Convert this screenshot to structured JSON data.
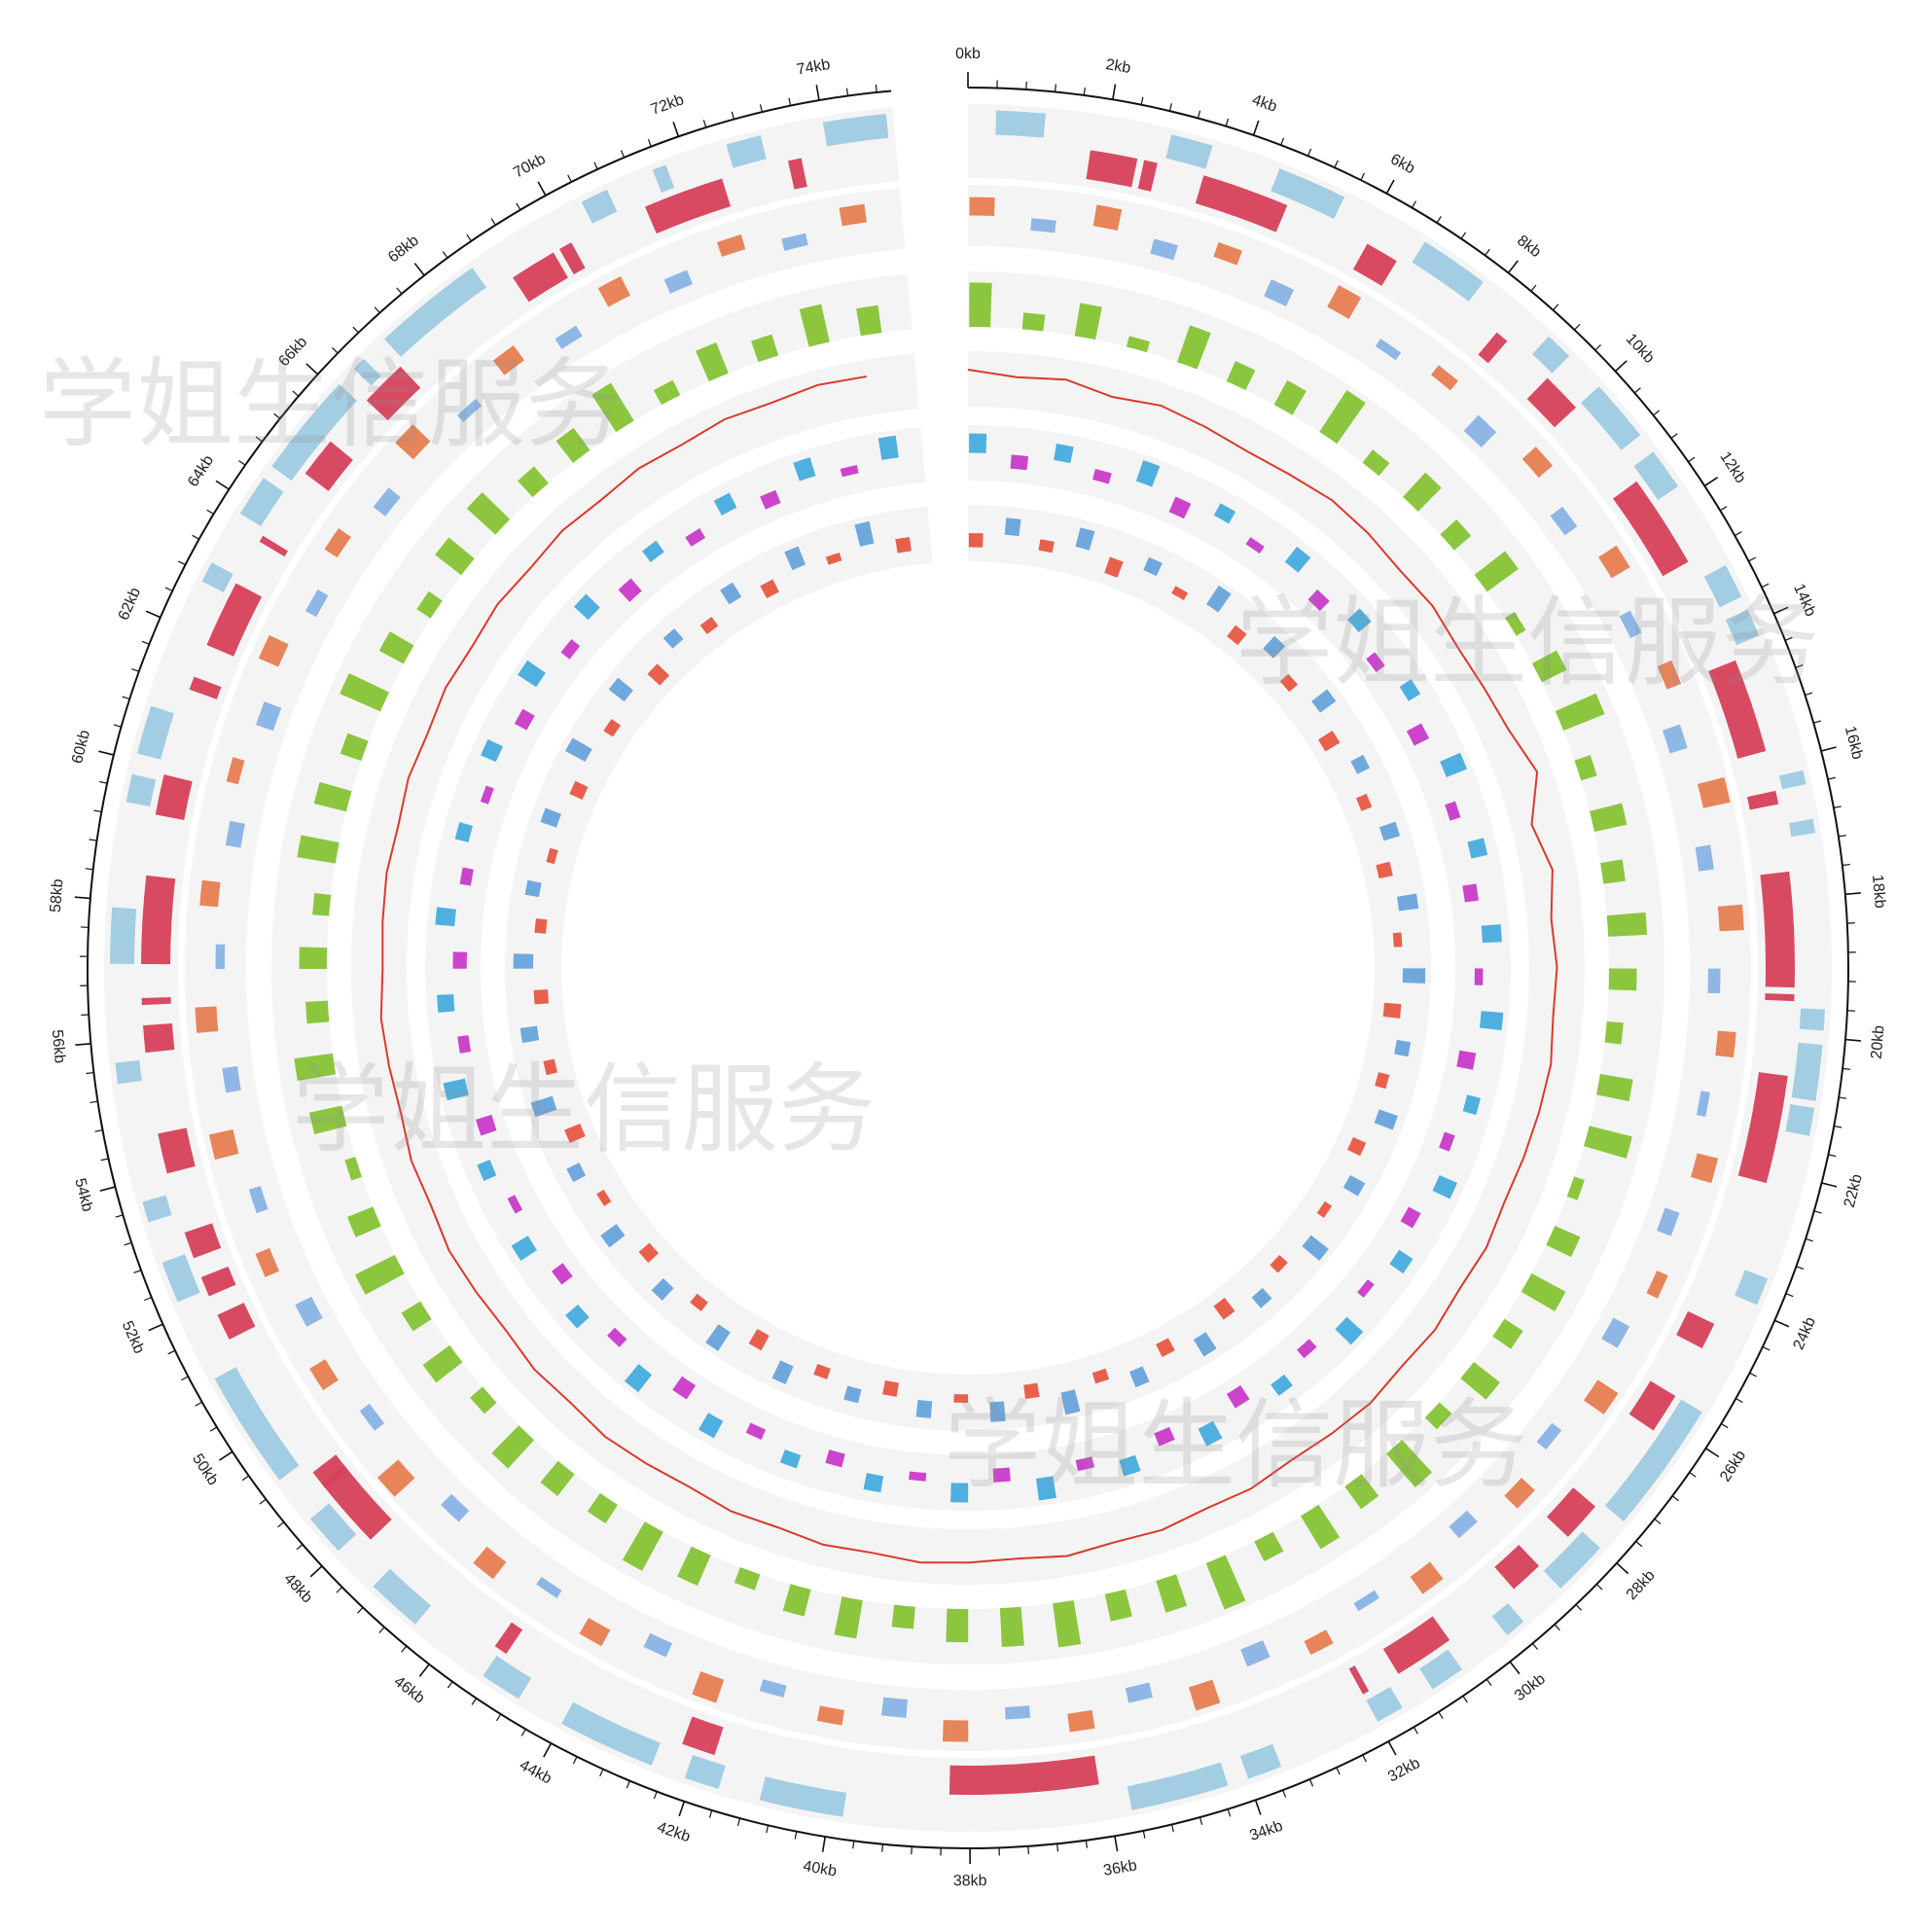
{
  "chart_data": {
    "type": "circos",
    "xlim": [
      0,
      75
    ],
    "xticks": [
      {
        "value": 0,
        "label": "0kb"
      },
      {
        "value": 2,
        "label": "2kb"
      },
      {
        "value": 4,
        "label": "4kb"
      },
      {
        "value": 6,
        "label": "6kb"
      },
      {
        "value": 8,
        "label": "8kb"
      },
      {
        "value": 10,
        "label": "10kb"
      },
      {
        "value": 12,
        "label": "12kb"
      },
      {
        "value": 14,
        "label": "14kb"
      },
      {
        "value": 16,
        "label": "16kb"
      },
      {
        "value": 18,
        "label": "18kb"
      },
      {
        "value": 20,
        "label": "20kb"
      },
      {
        "value": 22,
        "label": "22kb"
      },
      {
        "value": 24,
        "label": "24kb"
      },
      {
        "value": 26,
        "label": "26kb"
      },
      {
        "value": 28,
        "label": "28kb"
      },
      {
        "value": 30,
        "label": "30kb"
      },
      {
        "value": 32,
        "label": "32kb"
      },
      {
        "value": 34,
        "label": "34kb"
      },
      {
        "value": 36,
        "label": "36kb"
      },
      {
        "value": 38,
        "label": "38kb"
      },
      {
        "value": 40,
        "label": "40kb"
      },
      {
        "value": 42,
        "label": "42kb"
      },
      {
        "value": 44,
        "label": "44kb"
      },
      {
        "value": 46,
        "label": "46kb"
      },
      {
        "value": 48,
        "label": "48kb"
      },
      {
        "value": 50,
        "label": "50kb"
      },
      {
        "value": 52,
        "label": "52kb"
      },
      {
        "value": 54,
        "label": "54kb"
      },
      {
        "value": 56,
        "label": "56kb"
      },
      {
        "value": 58,
        "label": "58kb"
      },
      {
        "value": 60,
        "label": "60kb"
      },
      {
        "value": 62,
        "label": "62kb"
      },
      {
        "value": 64,
        "label": "64kb"
      },
      {
        "value": 66,
        "label": "66kb"
      },
      {
        "value": 68,
        "label": "68kb"
      },
      {
        "value": 70,
        "label": "70kb"
      },
      {
        "value": 72,
        "label": "72kb"
      },
      {
        "value": 74,
        "label": "74kb"
      }
    ],
    "xminor_step": 0.4,
    "watermark": "学姐生信服务",
    "x": [
      0,
      1,
      2,
      3,
      4,
      5,
      6,
      7,
      8,
      9,
      10,
      11,
      12,
      13,
      14,
      15,
      16,
      17,
      18,
      19,
      20,
      21,
      22,
      23,
      24,
      25,
      26,
      27,
      28,
      29,
      30,
      31,
      32,
      33,
      34,
      35,
      36,
      37,
      38,
      39,
      40,
      41,
      42,
      43,
      44,
      45,
      46,
      47,
      48,
      49,
      50,
      51,
      52,
      53,
      54,
      55,
      56,
      57,
      58,
      59,
      60,
      61,
      62,
      63,
      64,
      65,
      66,
      67,
      68,
      69,
      70,
      71,
      72,
      73,
      74
    ],
    "tracks": [
      {
        "type": "gene",
        "lane": "outer",
        "color": "#9ecae1",
        "spans": [
          [
            0.4,
            1.1
          ],
          [
            2.9,
            3.5
          ],
          [
            4.5,
            5.5
          ],
          [
            6.8,
            7.8
          ],
          [
            9.0,
            9.4
          ],
          [
            10.0,
            10.9
          ],
          [
            11.2,
            11.8
          ],
          [
            13.1,
            13.6
          ],
          [
            13.8,
            14.2
          ],
          [
            16.2,
            16.4
          ],
          [
            16.9,
            17.1
          ],
          [
            19.6,
            19.9
          ],
          [
            20.1,
            20.9
          ],
          [
            21.0,
            21.4
          ],
          [
            23.5,
            23.9
          ],
          [
            25.6,
            26.6
          ],
          [
            26.6,
            27.5
          ],
          [
            28.0,
            28.8
          ],
          [
            29.5,
            29.8
          ],
          [
            30.6,
            31.1
          ],
          [
            31.6,
            32.0
          ],
          [
            33.5,
            34.0
          ],
          [
            34.3,
            35.7
          ],
          [
            39.8,
            41.0
          ],
          [
            41.6,
            42.1
          ],
          [
            42.6,
            44.0
          ],
          [
            44.7,
            45.3
          ],
          [
            46.5,
            47.3
          ],
          [
            48.0,
            48.6
          ],
          [
            49.3,
            51.0
          ],
          [
            52.2,
            52.8
          ],
          [
            53.4,
            53.7
          ],
          [
            55.4,
            55.7
          ],
          [
            57.1,
            57.3
          ],
          [
            57.3,
            57.9
          ],
          [
            59.4,
            59.8
          ],
          [
            60.1,
            60.8
          ],
          [
            62.7,
            63.0
          ],
          [
            63.8,
            64.4
          ],
          [
            64.6,
            66.1
          ],
          [
            66.4,
            66.6
          ],
          [
            67.0,
            68.6
          ],
          [
            70.4,
            70.8
          ],
          [
            71.5,
            71.7
          ],
          [
            72.6,
            73.1
          ],
          [
            74.0,
            74.9
          ]
        ]
      },
      {
        "type": "gene",
        "lane": "inner",
        "color": "#d6405a",
        "spans": [
          [
            1.8,
            2.5
          ],
          [
            2.6,
            2.8
          ],
          [
            3.5,
            4.8
          ],
          [
            6.1,
            6.6
          ],
          [
            8.4,
            8.6
          ],
          [
            9.4,
            10.0
          ],
          [
            11.4,
            12.8
          ],
          [
            14.4,
            15.8
          ],
          [
            16.4,
            16.6
          ],
          [
            17.6,
            19.3
          ],
          [
            19.4,
            19.5
          ],
          [
            20.6,
            22.2
          ],
          [
            24.4,
            24.8
          ],
          [
            25.6,
            26.2
          ],
          [
            27.6,
            28.2
          ],
          [
            28.8,
            29.3
          ],
          [
            30.5,
            31.4
          ],
          [
            31.9,
            32.0
          ],
          [
            36.1,
            38.3
          ],
          [
            41.8,
            42.3
          ],
          [
            45.2,
            45.4
          ],
          [
            47.8,
            48.9
          ],
          [
            48.8,
            49.1
          ],
          [
            51.4,
            51.8
          ],
          [
            52.1,
            52.4
          ],
          [
            52.7,
            53.1
          ],
          [
            54.0,
            54.6
          ],
          [
            55.8,
            56.2
          ],
          [
            56.5,
            56.6
          ],
          [
            57.1,
            58.4
          ],
          [
            59.3,
            59.9
          ],
          [
            61.2,
            61.4
          ],
          [
            61.9,
            62.9
          ],
          [
            63.6,
            63.7
          ],
          [
            64.8,
            65.4
          ],
          [
            66.2,
            66.9
          ],
          [
            69.0,
            69.7
          ],
          [
            69.8,
            70.0
          ],
          [
            71.2,
            72.4
          ],
          [
            73.4,
            73.6
          ]
        ]
      },
      {
        "type": "bar",
        "ylim": [
          -1,
          1
        ],
        "pos_color": "#e8845a",
        "neg_color": "#8fb7e6",
        "values": [
          0.6,
          -0.4,
          0.7,
          -0.5,
          0.5,
          -0.6,
          0.8,
          -0.3,
          0.4,
          -0.7,
          0.6,
          -0.5,
          0.7,
          -0.4,
          0.5,
          -0.6,
          0.9,
          -0.5,
          0.8,
          -0.4,
          0.6,
          -0.3,
          0.7,
          -0.5,
          0.4,
          -0.6,
          0.8,
          -0.4,
          0.6,
          -0.5,
          0.7,
          -0.3,
          0.5,
          -0.6,
          0.8,
          -0.5,
          0.6,
          -0.4,
          0.7,
          -0.6,
          0.5,
          -0.4,
          0.8,
          -0.5,
          0.6,
          -0.3,
          0.7,
          -0.5,
          0.9,
          -0.4,
          0.6,
          -0.6,
          0.5,
          -0.4,
          0.8,
          -0.5,
          0.7,
          -0.3,
          0.6,
          -0.5,
          0.4,
          -0.6,
          0.7,
          -0.4,
          0.5,
          -0.5,
          0.8,
          -0.3,
          0.6,
          -0.4,
          0.7,
          -0.5,
          0.5,
          -0.4,
          0.6
        ]
      },
      {
        "type": "bar",
        "ylim": [
          0,
          1
        ],
        "pos_color": "#8cc63f",
        "neg_color": "#8cc63f",
        "values": [
          0.8,
          0.3,
          0.6,
          0.2,
          0.7,
          0.4,
          0.5,
          0.9,
          0.3,
          0.6,
          0.4,
          0.7,
          0.2,
          0.5,
          0.8,
          0.3,
          0.6,
          0.4,
          0.7,
          0.5,
          0.3,
          0.6,
          0.8,
          0.2,
          0.5,
          0.7,
          0.4,
          0.6,
          0.3,
          0.8,
          0.5,
          0.7,
          0.4,
          0.9,
          0.6,
          0.5,
          0.8,
          0.7,
          0.6,
          0.4,
          0.7,
          0.5,
          0.3,
          0.6,
          0.8,
          0.4,
          0.5,
          0.7,
          0.3,
          0.6,
          0.4,
          0.8,
          0.5,
          0.2,
          0.6,
          0.7,
          0.4,
          0.5,
          0.3,
          0.7,
          0.6,
          0.4,
          0.8,
          0.5,
          0.3,
          0.6,
          0.7,
          0.4,
          0.5,
          0.8,
          0.3,
          0.6,
          0.4,
          0.7,
          0.5
        ]
      },
      {
        "type": "line",
        "ylim": [
          0.3,
          0.6
        ],
        "color": "#d93a2b",
        "values": [
          0.5,
          0.47,
          0.49,
          0.45,
          0.48,
          0.46,
          0.44,
          0.45,
          0.47,
          0.46,
          0.44,
          0.45,
          0.43,
          0.44,
          0.46,
          0.52,
          0.41,
          0.47,
          0.43,
          0.45,
          0.44,
          0.46,
          0.45,
          0.44,
          0.43,
          0.45,
          0.44,
          0.46,
          0.45,
          0.47,
          0.46,
          0.45,
          0.47,
          0.46,
          0.48,
          0.47,
          0.49,
          0.47,
          0.48,
          0.49,
          0.47,
          0.48,
          0.46,
          0.47,
          0.45,
          0.46,
          0.47,
          0.45,
          0.46,
          0.44,
          0.45,
          0.46,
          0.44,
          0.45,
          0.43,
          0.44,
          0.45,
          0.43,
          0.44,
          0.45,
          0.44,
          0.46,
          0.45,
          0.47,
          0.46,
          0.48,
          0.47,
          0.49,
          0.48,
          0.5,
          0.49,
          0.51,
          0.5,
          0.52,
          0.51
        ]
      },
      {
        "type": "bar",
        "ylim": [
          -1,
          1
        ],
        "pos_color": "#4fb0e0",
        "neg_color": "#cc44cc",
        "values": [
          0.7,
          -0.5,
          0.6,
          -0.4,
          0.8,
          -0.6,
          0.5,
          -0.3,
          0.7,
          -0.5,
          0.6,
          -0.4,
          0.5,
          -0.6,
          0.8,
          -0.4,
          0.6,
          -0.5,
          0.7,
          -0.3,
          0.8,
          -0.6,
          0.5,
          -0.4,
          0.7,
          -0.5,
          0.6,
          -0.3,
          0.8,
          -0.4,
          0.5,
          -0.6,
          0.7,
          -0.5,
          0.6,
          -0.4,
          0.8,
          -0.5,
          0.7,
          -0.3,
          0.6,
          -0.5,
          0.5,
          -0.4,
          0.7,
          -0.6,
          0.8,
          -0.4,
          0.6,
          -0.5,
          0.7,
          -0.3,
          0.5,
          -0.6,
          0.8,
          -0.4,
          0.6,
          -0.5,
          0.7,
          -0.4,
          0.5,
          -0.3,
          0.6,
          -0.5,
          0.8,
          -0.4,
          0.7,
          -0.6,
          0.5,
          -0.4,
          0.6,
          -0.5,
          0.7,
          -0.3,
          0.8
        ]
      },
      {
        "type": "bar",
        "ylim": [
          -1,
          1
        ],
        "pos_color": "#6fa8dc",
        "neg_color": "#e8604c",
        "values": [
          -0.5,
          0.6,
          -0.4,
          0.7,
          -0.6,
          0.5,
          -0.3,
          0.8,
          -0.5,
          0.6,
          -0.4,
          0.7,
          -0.6,
          0.5,
          -0.4,
          0.6,
          -0.5,
          0.7,
          -0.3,
          0.8,
          -0.6,
          0.5,
          -0.4,
          0.7,
          -0.5,
          0.6,
          -0.3,
          0.8,
          -0.4,
          0.5,
          -0.6,
          0.7,
          -0.5,
          0.6,
          -0.4,
          0.8,
          -0.5,
          0.7,
          -0.3,
          0.6,
          -0.5,
          0.5,
          -0.4,
          0.7,
          -0.6,
          0.8,
          -0.4,
          0.6,
          -0.5,
          0.7,
          -0.3,
          0.5,
          -0.6,
          0.8,
          -0.4,
          0.6,
          -0.5,
          0.7,
          -0.4,
          0.5,
          -0.3,
          0.6,
          -0.5,
          0.8,
          -0.4,
          0.7,
          -0.6,
          0.5,
          -0.4,
          0.6,
          -0.5,
          0.7,
          -0.3,
          0.8,
          -0.5
        ]
      }
    ]
  }
}
